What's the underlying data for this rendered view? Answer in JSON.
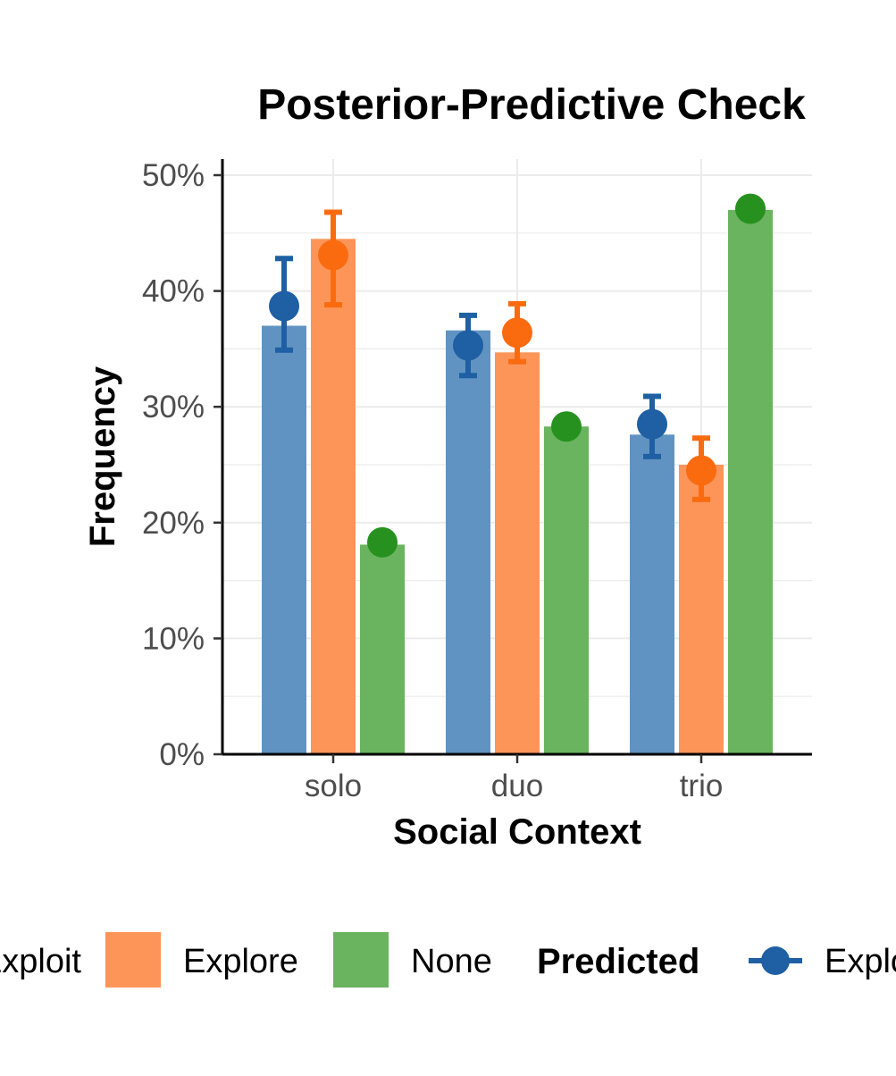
{
  "chart_data": {
    "type": "bar",
    "title": "Posterior-Predictive Check",
    "xlabel": "Social Context",
    "ylabel": "Frequency",
    "categories": [
      "solo",
      "duo",
      "trio"
    ],
    "ylim": [
      0,
      0.51
    ],
    "yticks": [
      0,
      0.1,
      0.2,
      0.3,
      0.4,
      0.5
    ],
    "ytick_labels": [
      "0%",
      "10%",
      "20%",
      "30%",
      "40%",
      "50%"
    ],
    "grid": true,
    "legend_position": "bottom",
    "series": [
      {
        "name": "Exploit",
        "color": "#6093c2",
        "values": [
          0.37,
          0.366,
          0.276
        ]
      },
      {
        "name": "Explore",
        "color": "#fd9558",
        "values": [
          0.445,
          0.347,
          0.25
        ]
      },
      {
        "name": "None",
        "color": "#6ab35f",
        "values": [
          0.181,
          0.283,
          0.47
        ]
      }
    ],
    "predicted": [
      {
        "name": "Exploit",
        "color": "#1f5fa3",
        "mean": [
          0.387,
          0.353,
          0.285
        ],
        "lower": [
          0.349,
          0.327,
          0.257
        ],
        "upper": [
          0.428,
          0.379,
          0.309
        ]
      },
      {
        "name": "Explore",
        "color": "#fa6b10",
        "mean": [
          0.431,
          0.364,
          0.245
        ],
        "lower": [
          0.388,
          0.339,
          0.22
        ],
        "upper": [
          0.468,
          0.389,
          0.273
        ]
      },
      {
        "name": "None",
        "color": "#27911f",
        "mean": [
          0.183,
          0.283,
          0.471
        ],
        "lower": [
          null,
          null,
          null
        ],
        "upper": [
          null,
          null,
          null
        ]
      }
    ],
    "legend": {
      "observed_items": [
        "Exploit",
        "Explore",
        "None"
      ],
      "predicted_title": "Predicted",
      "predicted_items": [
        "Exploit"
      ]
    }
  }
}
